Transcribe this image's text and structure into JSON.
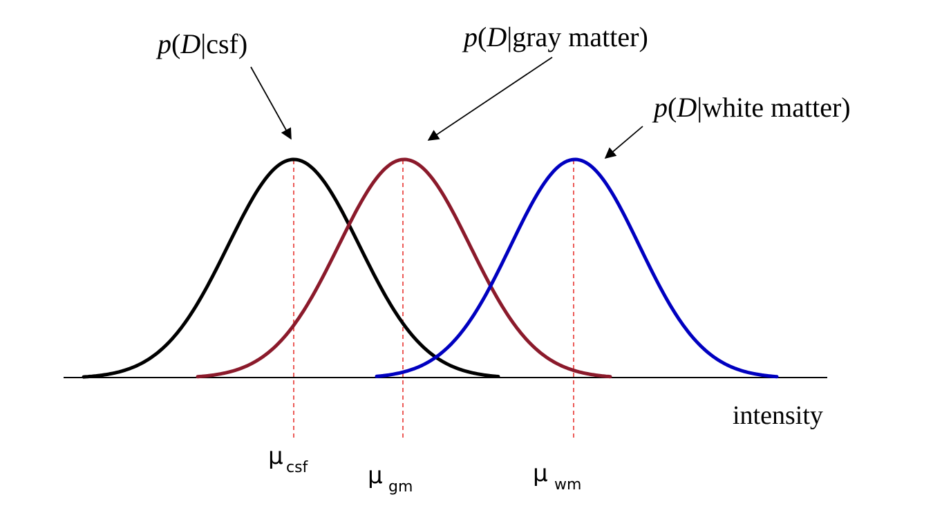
{
  "labels": {
    "csf": {
      "p": "p",
      "open": "(",
      "D": "D",
      "rest": "|csf)"
    },
    "gray": {
      "p": "p",
      "open": "(",
      "D": "D",
      "rest": "|gray matter)"
    },
    "white": {
      "p": "p",
      "open": "(",
      "D": "D",
      "rest": "|white matter)"
    }
  },
  "axis": {
    "label": "intensity"
  },
  "means": {
    "csf": {
      "symbol": "μ",
      "sub": "csf"
    },
    "gm": {
      "symbol": "μ",
      "sub": "gm"
    },
    "wm": {
      "symbol": "μ",
      "sub": "wm"
    }
  },
  "colors": {
    "csf": "#000000",
    "gray_matter": "#8b1a2b",
    "white_matter": "#0000c0",
    "mean_line": "#e8322e"
  }
}
